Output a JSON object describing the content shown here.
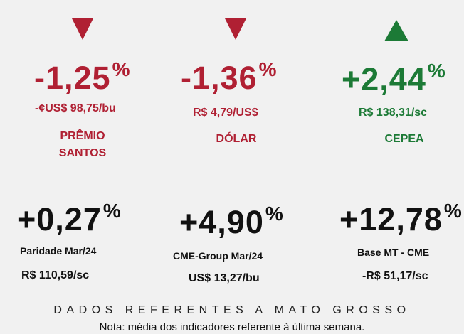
{
  "colors": {
    "negative": "#b02033",
    "positive": "#1c7a36",
    "neutral": "#111111",
    "background": "#f1f1f1"
  },
  "top_indicators": [
    {
      "direction": "down",
      "arrow_icon": "down-triangle-icon",
      "value": "-1,25",
      "unit": "%",
      "price": "-¢US$ 98,75/bu",
      "name_line1": "PRÊMIO",
      "name_line2": "SANTOS"
    },
    {
      "direction": "down",
      "arrow_icon": "down-triangle-icon",
      "value": "-1,36",
      "unit": "%",
      "price": "R$ 4,79/US$",
      "name_line1": "DÓLAR",
      "name_line2": ""
    },
    {
      "direction": "up",
      "arrow_icon": "up-triangle-icon",
      "value": "+2,44",
      "unit": "%",
      "price": "R$ 138,31/sc",
      "name_line1": "CEPEA",
      "name_line2": ""
    }
  ],
  "bottom_indicators": [
    {
      "value": "+0,27",
      "unit": "%",
      "name": "Paridade Mar/24",
      "price": "R$ 110,59/sc"
    },
    {
      "value": "+4,90",
      "unit": "%",
      "name": "CME-Group Mar/24",
      "price": "US$ 13,27/bu"
    },
    {
      "value": "+12,78",
      "unit": "%",
      "name": "Base MT - CME",
      "price": "-R$ 51,17/sc"
    }
  ],
  "footer": {
    "title": "DADOS REFERENTES A MATO GROSSO",
    "note": "Nota: média dos indicadores referente à última semana."
  }
}
